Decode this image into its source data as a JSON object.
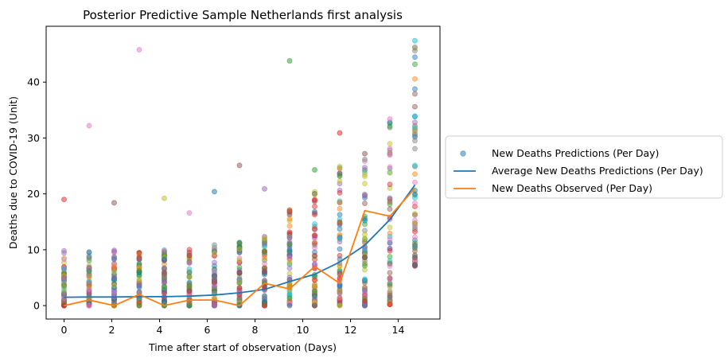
{
  "chart_data": {
    "type": "scatter",
    "title": "Posterior Predictive Sample Netherlands first analysis",
    "xlabel": "Time after start of observation (Days)",
    "ylabel": "Deaths due to COVID-19 (Unit)",
    "xlim": [
      -0.75,
      15.75
    ],
    "ylim": [
      -2.4,
      50
    ],
    "x_ticks": [
      0,
      2,
      4,
      6,
      8,
      10,
      12,
      14
    ],
    "y_ticks": [
      0,
      10,
      20,
      30,
      40
    ],
    "grid": false,
    "legend_placement": "center-right outside",
    "x": [
      0,
      1.05,
      2.1,
      3.15,
      4.2,
      5.25,
      6.3,
      7.35,
      8.4,
      9.45,
      10.5,
      11.55,
      12.6,
      13.65,
      14.7
    ],
    "series": [
      {
        "name": "New Deaths Predictions (Per Day)",
        "kind": "scatter",
        "color": "#1f77b4",
        "min_values": [
          0,
          0,
          0,
          0,
          0,
          0,
          0,
          0,
          0,
          0,
          0,
          0,
          0,
          0.2,
          7.1
        ],
        "max_values": [
          19,
          32.2,
          18.4,
          45.8,
          19.2,
          16.6,
          20.4,
          25.1,
          20.9,
          43.8,
          24.3,
          30.9,
          27.2,
          33.4,
          47.4
        ],
        "mean_values": [
          1.5,
          1.55,
          1.55,
          1.6,
          1.6,
          1.7,
          1.9,
          2.3,
          2.9,
          4.3,
          5.6,
          7.8,
          10.8,
          15.4,
          21.6
        ]
      },
      {
        "name": "Average New Deaths Predictions (Per Day)",
        "kind": "line",
        "color": "#1f77b4",
        "values": [
          1.5,
          1.55,
          1.55,
          1.6,
          1.6,
          1.7,
          1.9,
          2.3,
          2.9,
          4.3,
          5.6,
          7.8,
          10.8,
          15.4,
          21.6
        ]
      },
      {
        "name": "New Deaths Observed (Per Day)",
        "kind": "line",
        "color": "#ff7f0e",
        "values": [
          0,
          1,
          0,
          2,
          0,
          1,
          1,
          0,
          4,
          3,
          7,
          4,
          17,
          16,
          21
        ]
      }
    ],
    "point_palette": [
      "#1f77b4",
      "#ff7f0e",
      "#2ca02c",
      "#d62728",
      "#9467bd",
      "#8c564b",
      "#e377c2",
      "#7f7f7f",
      "#bcbd22",
      "#17becf"
    ]
  }
}
